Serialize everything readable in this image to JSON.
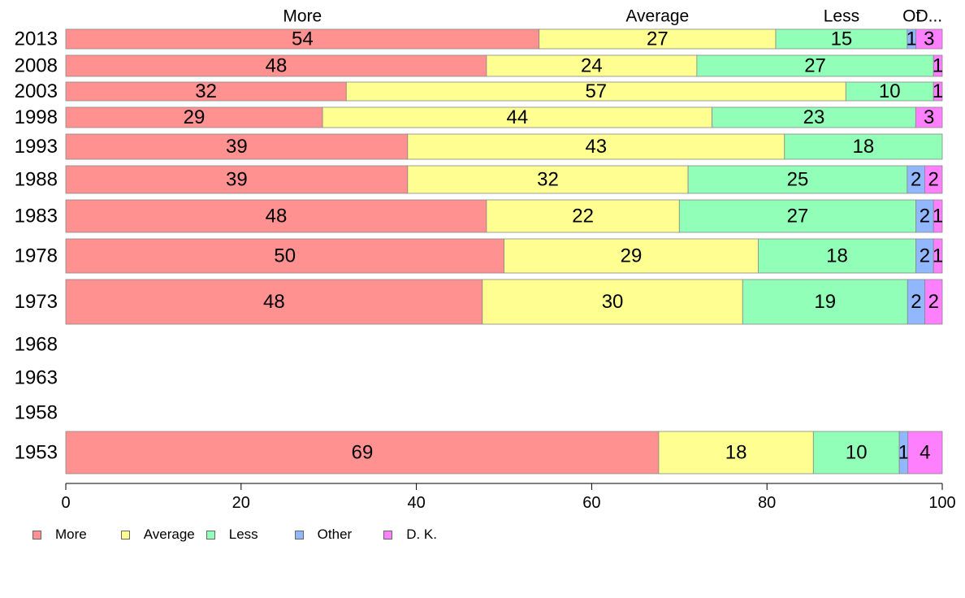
{
  "chart_data": {
    "type": "bar",
    "orientation": "horizontal",
    "stacked": true,
    "title": "",
    "xlabel": "",
    "ylabel": "",
    "xlim": [
      0,
      100
    ],
    "x_ticks": [
      0,
      20,
      40,
      60,
      80,
      100
    ],
    "grid": false,
    "legend_position": "bottom-left",
    "top_category_labels": [
      "More",
      "Average",
      "Less",
      "Ot",
      "D..."
    ],
    "categories": [
      "2013",
      "2008",
      "2003",
      "1998",
      "1993",
      "1988",
      "1983",
      "1978",
      "1973",
      "1968",
      "1963",
      "1958",
      "1953"
    ],
    "series": [
      {
        "name": "More",
        "color": "#ff9191",
        "values": [
          54,
          48,
          32,
          29,
          39,
          39,
          48,
          50,
          48,
          null,
          null,
          null,
          69
        ]
      },
      {
        "name": "Average",
        "color": "#ffff91",
        "values": [
          27,
          24,
          57,
          44,
          43,
          32,
          22,
          29,
          30,
          null,
          null,
          null,
          18
        ]
      },
      {
        "name": "Less",
        "color": "#91ffb7",
        "values": [
          15,
          27,
          10,
          23,
          18,
          25,
          27,
          18,
          19,
          null,
          null,
          null,
          10
        ]
      },
      {
        "name": "Other",
        "color": "#91b7ff",
        "values": [
          1,
          0,
          0,
          0,
          0,
          2,
          2,
          2,
          2,
          null,
          null,
          null,
          1
        ]
      },
      {
        "name": "D. K.",
        "color": "#ff80ff",
        "values": [
          3,
          1,
          1,
          3,
          0,
          2,
          1,
          1,
          2,
          null,
          null,
          null,
          4
        ]
      }
    ]
  }
}
